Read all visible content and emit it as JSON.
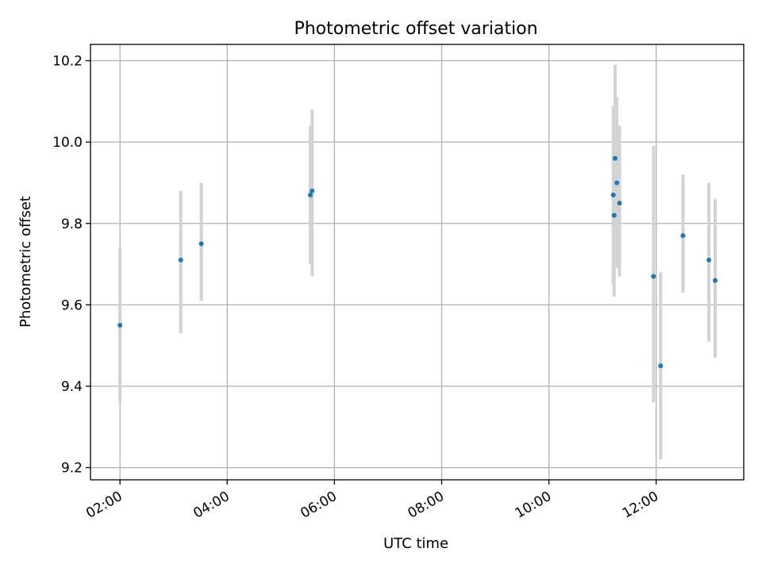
{
  "chart_data": {
    "type": "scatter",
    "title": "Photometric offset variation",
    "xlabel": "UTC time",
    "ylabel": "Photometric offset",
    "xlim": [
      "01:27",
      "13:38"
    ],
    "ylim": [
      9.17,
      10.24
    ],
    "grid": true,
    "x_ticks": [
      "02:00",
      "04:00",
      "06:00",
      "08:00",
      "10:00",
      "12:00"
    ],
    "y_ticks": [
      "9.2",
      "9.4",
      "9.6",
      "9.8",
      "10.0",
      "10.2"
    ],
    "marker_color": "#1f77b4",
    "errorbar_color": "#d3d3d3",
    "points": [
      {
        "t": "02:00",
        "y": 9.55,
        "lo": 9.36,
        "hi": 9.74
      },
      {
        "t": "03:08",
        "y": 9.71,
        "lo": 9.53,
        "hi": 9.88
      },
      {
        "t": "03:31",
        "y": 9.75,
        "lo": 9.61,
        "hi": 9.9
      },
      {
        "t": "05:33",
        "y": 9.87,
        "lo": 9.7,
        "hi": 10.04
      },
      {
        "t": "05:35",
        "y": 9.88,
        "lo": 9.67,
        "hi": 10.08
      },
      {
        "t": "11:12",
        "y": 9.87,
        "lo": 9.65,
        "hi": 10.09
      },
      {
        "t": "11:13",
        "y": 9.82,
        "lo": 9.62,
        "hi": 10.03
      },
      {
        "t": "11:14",
        "y": 9.96,
        "lo": 9.74,
        "hi": 10.19
      },
      {
        "t": "11:16",
        "y": 9.9,
        "lo": 9.69,
        "hi": 10.11
      },
      {
        "t": "11:19",
        "y": 9.85,
        "lo": 9.67,
        "hi": 10.04
      },
      {
        "t": "11:57",
        "y": 9.67,
        "lo": 9.36,
        "hi": 9.99
      },
      {
        "t": "12:05",
        "y": 9.45,
        "lo": 9.22,
        "hi": 9.68
      },
      {
        "t": "12:30",
        "y": 9.77,
        "lo": 9.63,
        "hi": 9.92
      },
      {
        "t": "12:59",
        "y": 9.71,
        "lo": 9.51,
        "hi": 9.9
      },
      {
        "t": "13:06",
        "y": 9.66,
        "lo": 9.47,
        "hi": 9.86
      }
    ]
  }
}
